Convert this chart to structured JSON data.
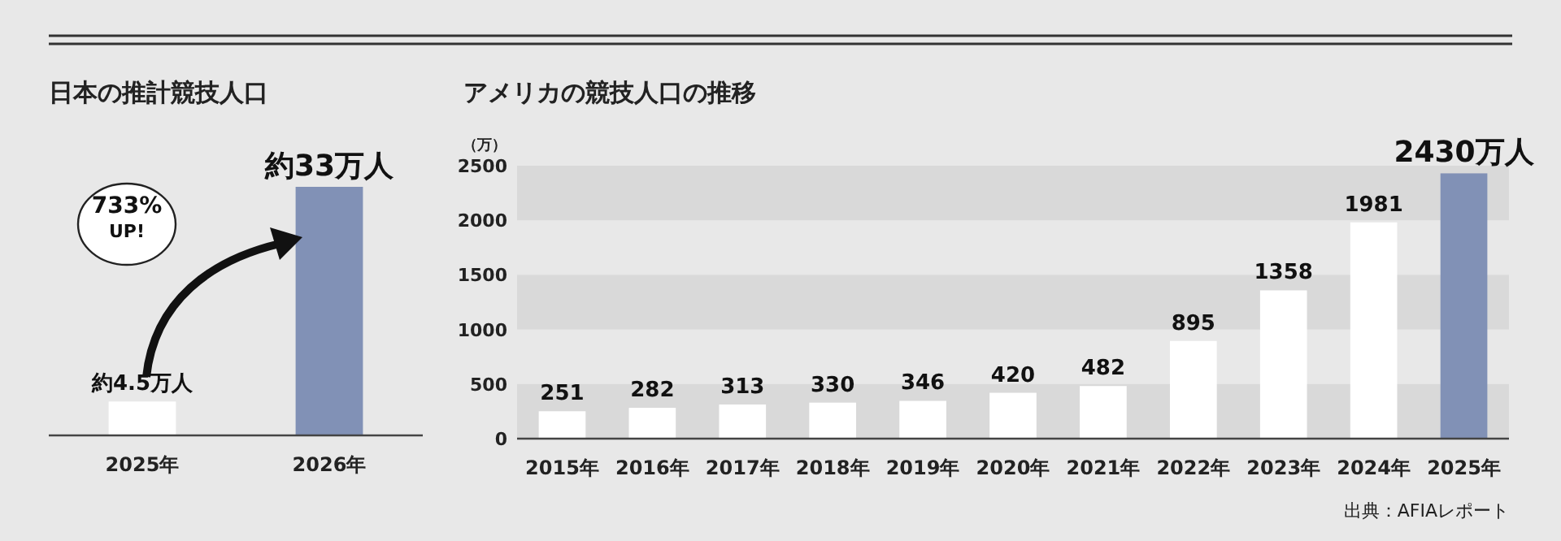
{
  "chart_data": [
    {
      "type": "bar",
      "title": "日本の推計競技人口",
      "categories": [
        "2025年",
        "2026年"
      ],
      "values": [
        4.5,
        33
      ],
      "colors": [
        "#ffffff",
        "#8191b6"
      ],
      "value_labels": [
        "約4.5万人",
        "約33万人"
      ],
      "annotations": [
        "733% UP!"
      ]
    },
    {
      "type": "bar",
      "title": "アメリカの競技人口の推移",
      "ylabel": "（万）",
      "categories": [
        "2015年",
        "2016年",
        "2017年",
        "2018年",
        "2019年",
        "2020年",
        "2021年",
        "2022年",
        "2023年",
        "2024年",
        "2025年"
      ],
      "values": [
        251,
        282,
        313,
        330,
        346,
        420,
        482,
        895,
        1358,
        1981,
        2430
      ],
      "colors": [
        "#ffffff",
        "#ffffff",
        "#ffffff",
        "#ffffff",
        "#ffffff",
        "#ffffff",
        "#ffffff",
        "#ffffff",
        "#ffffff",
        "#ffffff",
        "#8191b6"
      ],
      "value_labels": [
        "251",
        "282",
        "313",
        "330",
        "346",
        "420",
        "482",
        "895",
        "1358",
        "1981",
        "2430万人"
      ],
      "ylim": [
        0,
        2500
      ],
      "yticks": [
        0,
        500,
        1000,
        1500,
        2000,
        2500
      ],
      "bands": [
        {
          "axis": "y",
          "from": 0,
          "to": 500,
          "color": "#d9d9d9"
        },
        {
          "axis": "y",
          "from": 1000,
          "to": 1500,
          "color": "#d9d9d9"
        },
        {
          "axis": "y",
          "from": 2000,
          "to": 2500,
          "color": "#d9d9d9"
        }
      ],
      "annotations": [
        "出典：AFIAレポート"
      ]
    }
  ]
}
